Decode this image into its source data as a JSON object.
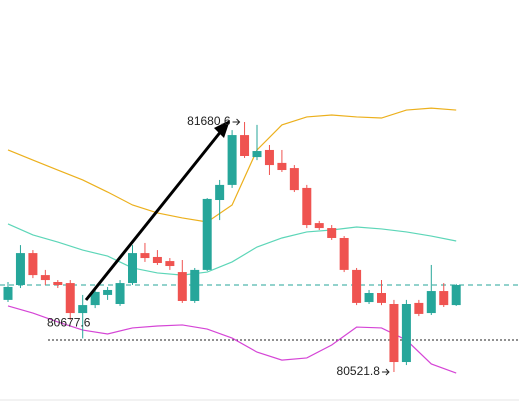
{
  "chart_data": {
    "type": "candlestick",
    "up_color": "#26a69a",
    "down_color": "#ef5350",
    "ylim": [
      80299.3,
      82246.1
    ],
    "open": [
      80856,
      80925,
      81073,
      80971,
      80939,
      80934,
      80795,
      80832,
      80879,
      80837,
      80934,
      81073,
      81055,
      81036,
      80985,
      80851,
      80995,
      81319,
      81389,
      81620,
      81518,
      81551,
      81491,
      81467,
      81375,
      81212,
      81189,
      81143,
      80995,
      80846,
      80888,
      80837,
      80568,
      80842,
      80795,
      80897,
      80832
    ],
    "high": [
      80939,
      81110,
      81087,
      80995,
      80948,
      80948,
      80879,
      80911,
      80916,
      80948,
      81110,
      81120,
      81087,
      81050,
      81041,
      81004,
      81328,
      81412,
      81643,
      81680.6,
      81667,
      81574,
      81551,
      81481,
      81389,
      81222,
      81203,
      81152,
      81004,
      80902,
      80948,
      80856,
      80856,
      80856,
      81018,
      80934,
      80930
    ],
    "low": [
      80846,
      80911,
      80957,
      80925,
      80911,
      80763,
      80677.6,
      80818,
      80856,
      80828,
      80925,
      81032,
      81018,
      80995,
      80842,
      80842,
      80990,
      81226,
      81375,
      81514,
      81504,
      81435,
      81449,
      81356,
      81189,
      81180,
      81134,
      80985,
      80832,
      80837,
      80832,
      80521.8,
      80554,
      80781,
      80786,
      80823,
      80828
    ],
    "close": [
      80916,
      81073,
      80971,
      80948,
      80925,
      80795,
      80832,
      80893,
      80902,
      80934,
      81073,
      81050,
      81027,
      81013,
      80851,
      80995,
      81324,
      81389,
      81620,
      81523,
      81546,
      81481,
      81458,
      81365,
      81203,
      81189,
      81143,
      80995,
      80842,
      80888,
      80842,
      80568,
      80837,
      80791,
      80897,
      80832,
      80925
    ],
    "band_x": [
      0,
      2,
      4,
      6,
      8,
      10,
      12,
      14,
      16,
      18,
      20,
      22,
      24,
      26,
      28,
      30,
      32,
      34,
      36
    ],
    "bands": [
      {
        "color": "#ecb01d",
        "values": [
          81551,
          81504,
          81458,
          81412,
          81356,
          81296,
          81259,
          81236,
          81217,
          81296,
          81551,
          81667,
          81704,
          81713,
          81704,
          81699,
          81736,
          81745,
          81736
        ]
      },
      {
        "color": "#5dd6b8",
        "values": [
          81208,
          81157,
          81124,
          81087,
          81059,
          81004,
          80981,
          80971,
          80985,
          81032,
          81101,
          81143,
          81171,
          81180,
          81194,
          81185,
          81171,
          81152,
          81129
        ]
      },
      {
        "color": "#d545d6",
        "values": [
          80828,
          80795,
          80754,
          80716,
          80698,
          80726,
          80735,
          80740,
          80721,
          80679,
          80614,
          80577,
          80587,
          80647,
          80730,
          80726,
          80670,
          80559,
          80517
        ]
      }
    ],
    "hlines": [
      {
        "value": 80925,
        "color": "#26a69a"
      },
      {
        "value": 80670,
        "color": "#222222"
      }
    ]
  }
}
